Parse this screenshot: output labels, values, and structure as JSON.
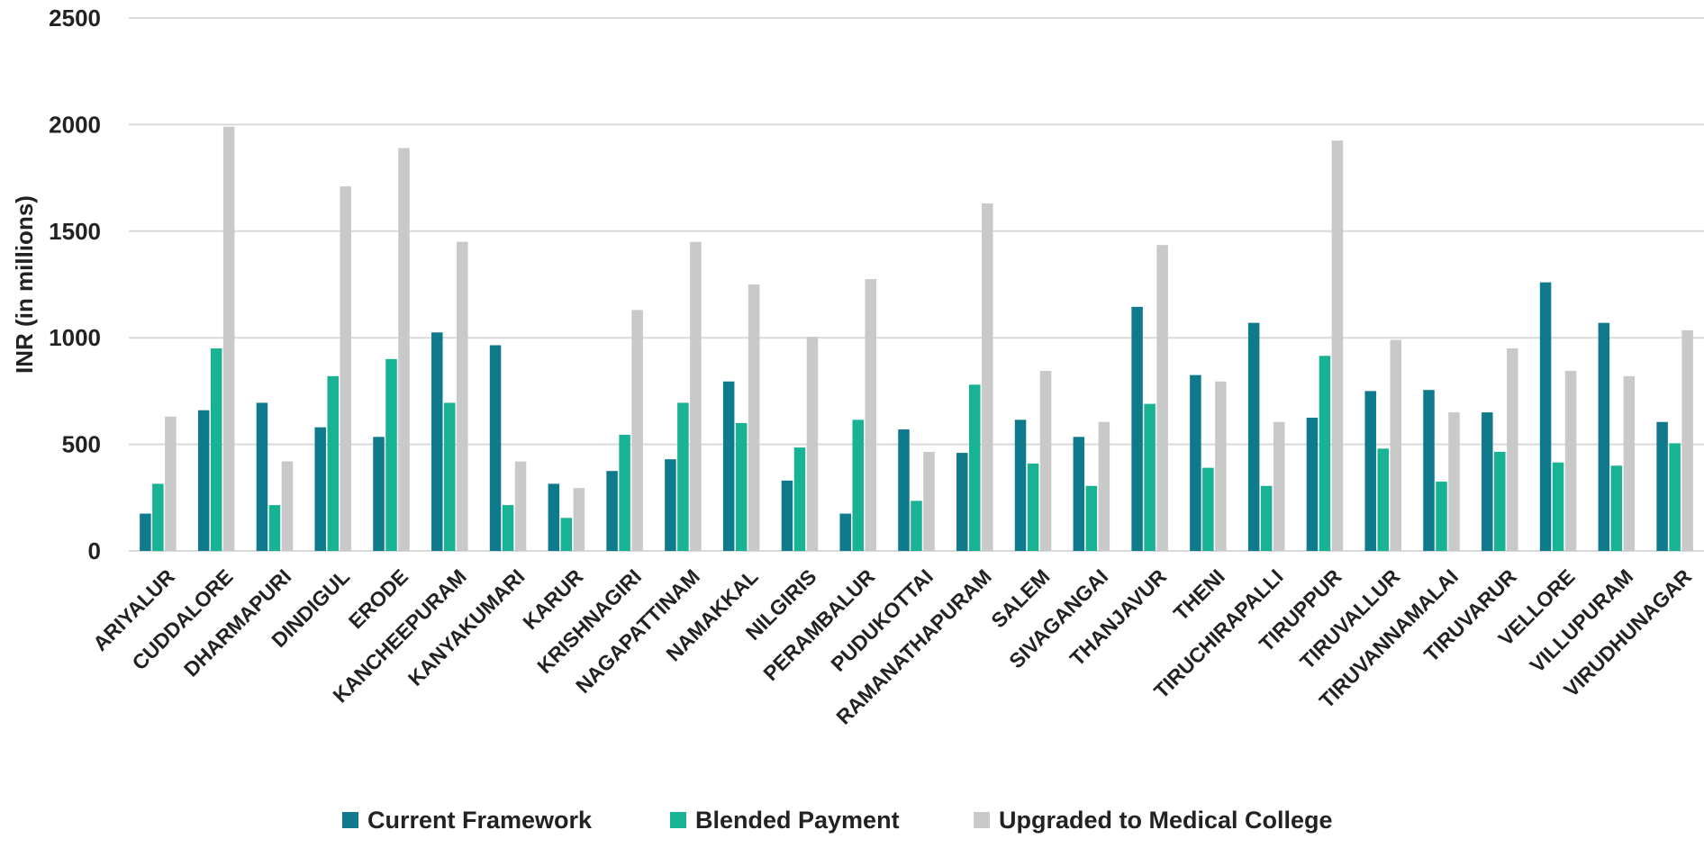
{
  "chart_data": {
    "type": "bar",
    "title": "",
    "xlabel": "",
    "ylabel": "INR (in millions)",
    "ylim": [
      0,
      2500
    ],
    "yticks": [
      0,
      500,
      1000,
      1500,
      2000,
      2500
    ],
    "grid": true,
    "legend_position": "bottom",
    "categories": [
      "ARIYALUR",
      "CUDDALORE",
      "DHARMAPURI",
      "DINDIGUL",
      "ERODE",
      "KANCHEEPURAM",
      "KANYAKUMARI",
      "KARUR",
      "KRISHNAGIRI",
      "NAGAPATTINAM",
      "NAMAKKAL",
      "NILGIRIS",
      "PERAMBALUR",
      "PUDUKOTTAI",
      "RAMANATHAPURAM",
      "SALEM",
      "SIVAGANGAI",
      "THANJAVUR",
      "THENI",
      "TIRUCHIRAPALLI",
      "TIRUPPUR",
      "TIRUVALLUR",
      "TIRUVANNAMALAI",
      "TIRUVARUR",
      "VELLORE",
      "VILLUPURAM",
      "VIRUDHUNAGAR"
    ],
    "series": [
      {
        "name": "Current Framework",
        "color": "#0e7a8c",
        "values": [
          175,
          660,
          695,
          580,
          535,
          1025,
          965,
          315,
          375,
          430,
          795,
          330,
          175,
          570,
          460,
          615,
          535,
          1145,
          825,
          1070,
          625,
          750,
          755,
          650,
          1260,
          1070,
          605
        ]
      },
      {
        "name": "Blended Payment",
        "color": "#17b394",
        "values": [
          315,
          950,
          215,
          820,
          900,
          695,
          215,
          155,
          545,
          695,
          600,
          485,
          615,
          235,
          780,
          410,
          305,
          690,
          390,
          305,
          915,
          480,
          325,
          465,
          415,
          400,
          505
        ]
      },
      {
        "name": "Upgraded to Medical College",
        "color": "#c9c9c9",
        "values": [
          630,
          1990,
          420,
          1710,
          1890,
          1450,
          420,
          295,
          1130,
          1450,
          1250,
          1005,
          1275,
          465,
          1630,
          845,
          605,
          1435,
          795,
          605,
          1925,
          990,
          650,
          950,
          845,
          820,
          1035
        ]
      }
    ]
  }
}
